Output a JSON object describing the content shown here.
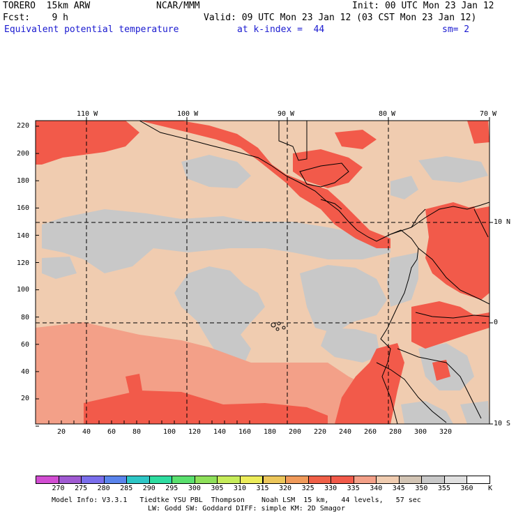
{
  "header": {
    "model": "TORERO  15km ARW",
    "org": "NCAR/MMM",
    "init": "Init: 00 UTC Mon 23 Jan 12",
    "fcst": "Fcst:    9 h",
    "valid": "Valid: 09 UTC Mon 23 Jan 12 (03 CST Mon 23 Jan 12)",
    "field": "Equivalent potential temperature",
    "level": "at k-index =  44",
    "smooth": "sm= 2"
  },
  "axes": {
    "left_ticks": [
      "220",
      "200",
      "180",
      "160",
      "140",
      "120",
      "100",
      "80",
      "60",
      "40",
      "20"
    ],
    "bottom_ticks": [
      "20",
      "40",
      "60",
      "80",
      "100",
      "120",
      "140",
      "160",
      "180",
      "200",
      "220",
      "240",
      "260",
      "280",
      "300",
      "320"
    ],
    "top_lon": [
      "110 W",
      "100 W",
      "90 W",
      "80 W",
      "70 W"
    ],
    "right_lat": [
      "10 N",
      "0",
      "10 S"
    ]
  },
  "colorbar": {
    "labels": [
      "270",
      "275",
      "280",
      "285",
      "290",
      "295",
      "300",
      "305",
      "310",
      "315",
      "320",
      "325",
      "330",
      "335",
      "340",
      "345",
      "350",
      "355",
      "360"
    ],
    "unit": "K",
    "colors": [
      "#d24dd2",
      "#a05ad2",
      "#7a6eec",
      "#5a84ec",
      "#2ec6c6",
      "#2edca0",
      "#5ae06e",
      "#8ee05a",
      "#c6ec5a",
      "#ecec5a",
      "#ecc65a",
      "#f09a5a",
      "#f06048",
      "#f25a4a",
      "#f3a088",
      "#f0ccb0",
      "#d2c4b4",
      "#c8c8c8",
      "#e0e0e0",
      "#ffffff"
    ]
  },
  "footer": {
    "line1": "Model Info: V3.3.1   Tiedtke YSU PBL  Thompson    Noah LSM  15 km,   44 levels,   57 sec",
    "line2": "LW: Godd SW: Goddard DIFF: simple KM: 2D Smagor"
  }
}
